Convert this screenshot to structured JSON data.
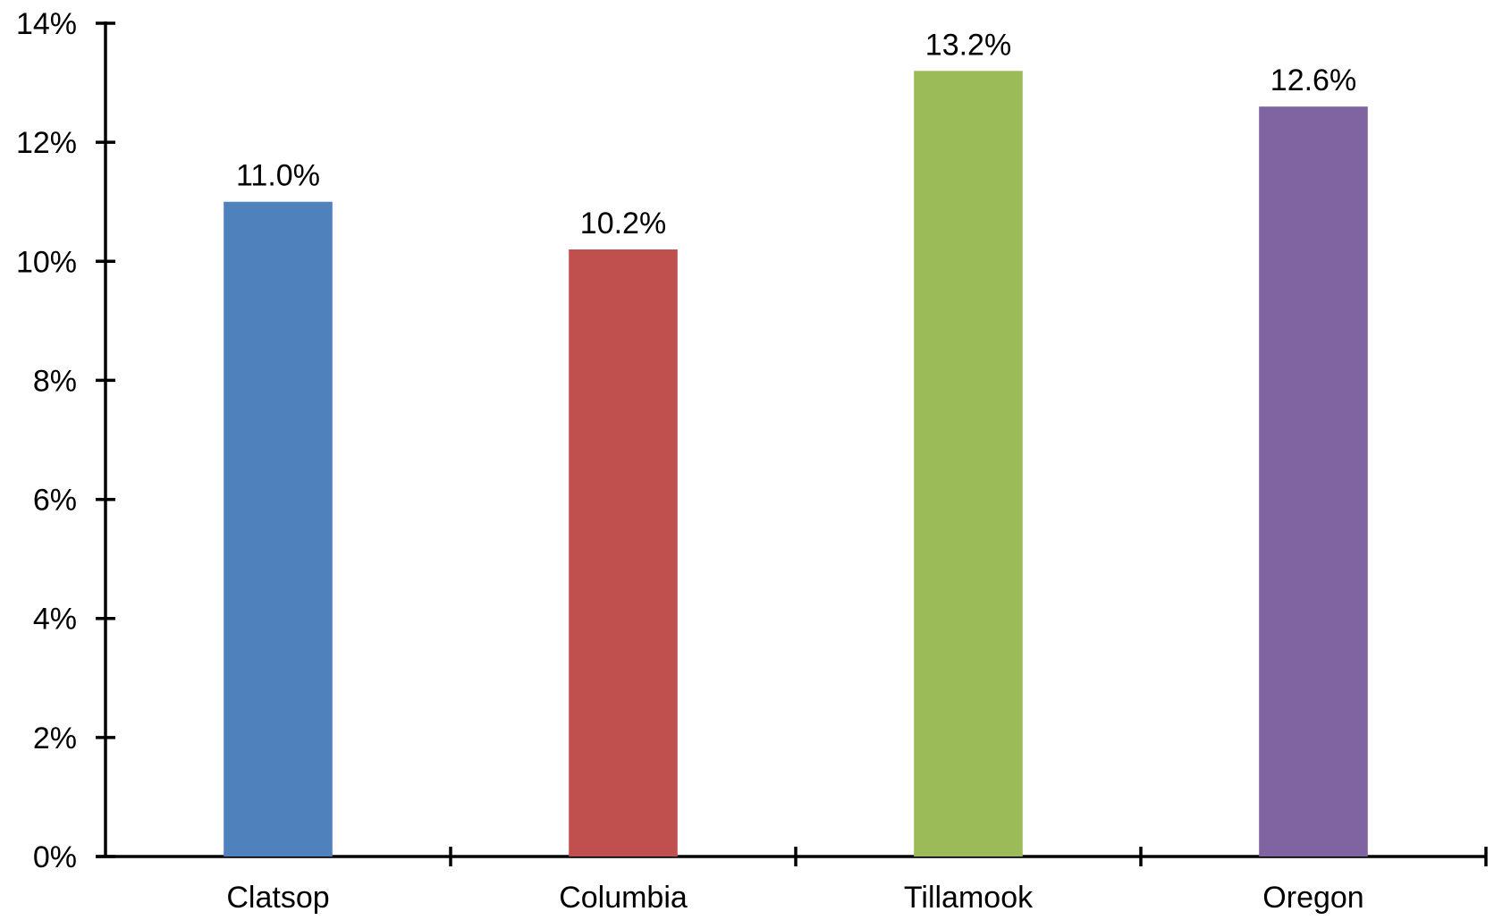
{
  "chart_data": {
    "type": "bar",
    "title": "",
    "xlabel": "",
    "ylabel": "",
    "categories": [
      "Clatsop",
      "Columbia",
      "Tillamook",
      "Oregon"
    ],
    "values": [
      11.0,
      10.2,
      13.2,
      12.6
    ],
    "data_labels": [
      "11.0%",
      "10.2%",
      "13.2%",
      "12.6%"
    ],
    "colors": [
      "#4f81bd",
      "#c0504d",
      "#9bbb59",
      "#8064a2"
    ],
    "ylim": [
      0,
      14
    ],
    "yticks": [
      0,
      2,
      4,
      6,
      8,
      10,
      12,
      14
    ],
    "ytick_labels": [
      "0%",
      "2%",
      "4%",
      "6%",
      "8%",
      "10%",
      "12%",
      "14%"
    ],
    "grid": false,
    "legend": "none"
  }
}
